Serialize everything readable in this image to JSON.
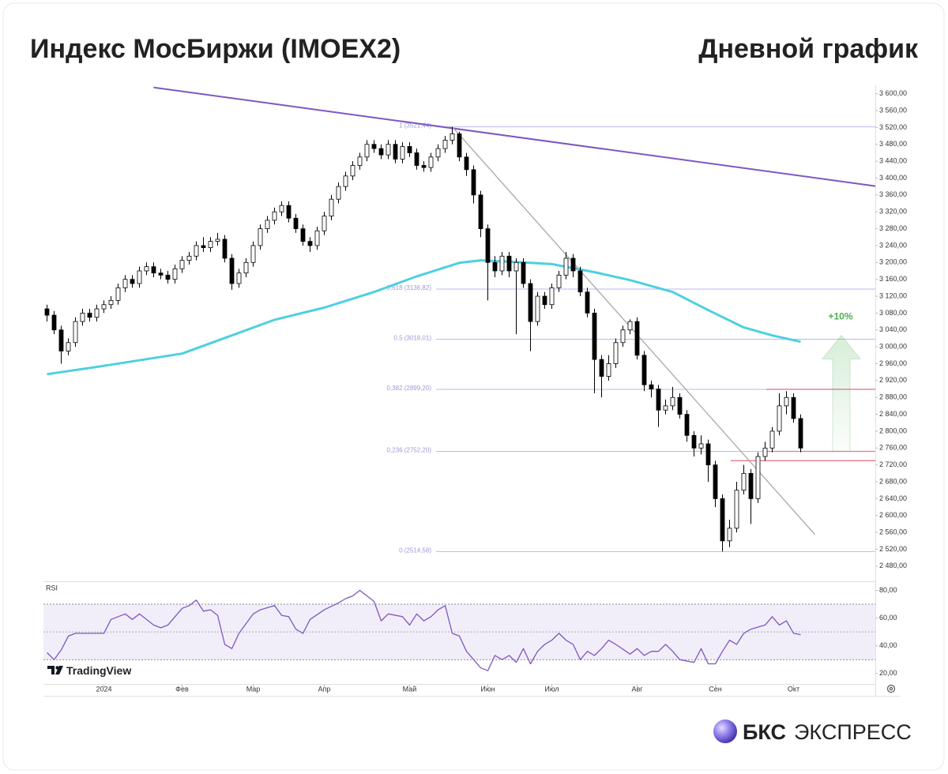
{
  "chart_data": {
    "type": "candlestick",
    "title": "Индекс МосБиржи (IMOEX2)",
    "subtitle": "Дневной график",
    "xlim": [
      -0.5,
      116.5
    ],
    "xticks": [
      {
        "value": 8,
        "label": "2024"
      },
      {
        "value": 19,
        "label": "Фев"
      },
      {
        "value": 29,
        "label": "Мар"
      },
      {
        "value": 39,
        "label": "Апр"
      },
      {
        "value": 51,
        "label": "Май"
      },
      {
        "value": 62,
        "label": "Июн"
      },
      {
        "value": 71,
        "label": "Июл"
      },
      {
        "value": 83,
        "label": "Авг"
      },
      {
        "value": 94,
        "label": "Сен"
      },
      {
        "value": 105,
        "label": "Окт"
      }
    ],
    "ylim": [
      2446,
      3620
    ],
    "yticks": [
      {
        "value": 2480,
        "label": "2 480,00"
      },
      {
        "value": 2520,
        "label": "2 520,00"
      },
      {
        "value": 2560,
        "label": "2 560,00"
      },
      {
        "value": 2600,
        "label": "2 600,00"
      },
      {
        "value": 2640,
        "label": "2 640,00"
      },
      {
        "value": 2680,
        "label": "2 680,00"
      },
      {
        "value": 2720,
        "label": "2 720,00"
      },
      {
        "value": 2760,
        "label": "2 760,00"
      },
      {
        "value": 2800,
        "label": "2 800,00"
      },
      {
        "value": 2840,
        "label": "2 840,00"
      },
      {
        "value": 2880,
        "label": "2 880,00"
      },
      {
        "value": 2920,
        "label": "2 920,00"
      },
      {
        "value": 2960,
        "label": "2 960,00"
      },
      {
        "value": 3000,
        "label": "3 000,00"
      },
      {
        "value": 3040,
        "label": "3 040,00"
      },
      {
        "value": 3080,
        "label": "3 080,00"
      },
      {
        "value": 3120,
        "label": "3 120,00"
      },
      {
        "value": 3160,
        "label": "3 160,00"
      },
      {
        "value": 3200,
        "label": "3 200,00"
      },
      {
        "value": 3240,
        "label": "3 240,00"
      },
      {
        "value": 3280,
        "label": "3 280,00"
      },
      {
        "value": 3320,
        "label": "3 320,00"
      },
      {
        "value": 3360,
        "label": "3 360,00"
      },
      {
        "value": 3400,
        "label": "3 400,00"
      },
      {
        "value": 3440,
        "label": "3 440,00"
      },
      {
        "value": 3480,
        "label": "3 480,00"
      },
      {
        "value": 3520,
        "label": "3 520,00"
      },
      {
        "value": 3560,
        "label": "3 560,00"
      },
      {
        "value": 3600,
        "label": "3 600,00"
      }
    ],
    "up_color": "#ffffff",
    "down_color": "#000000",
    "x": [
      0,
      1,
      2,
      3,
      4,
      5,
      6,
      7,
      8,
      9,
      10,
      11,
      12,
      13,
      14,
      15,
      16,
      17,
      18,
      19,
      20,
      21,
      22,
      23,
      24,
      25,
      26,
      27,
      28,
      29,
      30,
      31,
      32,
      33,
      34,
      35,
      36,
      37,
      38,
      39,
      40,
      41,
      42,
      43,
      44,
      45,
      46,
      47,
      48,
      49,
      50,
      51,
      52,
      53,
      54,
      55,
      56,
      57,
      58,
      59,
      60,
      61,
      62,
      63,
      64,
      65,
      66,
      67,
      68,
      69,
      70,
      71,
      72,
      73,
      74,
      75,
      76,
      77,
      78,
      79,
      80,
      81,
      82,
      83,
      84,
      85,
      86,
      87,
      88,
      89,
      90,
      91,
      92,
      93,
      94,
      95,
      96,
      97,
      98,
      99,
      100,
      101,
      102,
      103,
      104,
      105,
      106
    ],
    "open": [
      3090,
      3075,
      3040,
      2990,
      3010,
      3060,
      3080,
      3070,
      3090,
      3100,
      3110,
      3140,
      3160,
      3150,
      3180,
      3190,
      3175,
      3170,
      3160,
      3185,
      3205,
      3215,
      3240,
      3235,
      3250,
      3255,
      3210,
      3150,
      3175,
      3200,
      3240,
      3280,
      3300,
      3320,
      3335,
      3305,
      3280,
      3250,
      3240,
      3275,
      3310,
      3350,
      3380,
      3405,
      3430,
      3450,
      3480,
      3470,
      3455,
      3480,
      3445,
      3475,
      3460,
      3430,
      3425,
      3450,
      3470,
      3490,
      3505,
      3450,
      3420,
      3360,
      3280,
      3200,
      3180,
      3215,
      3180,
      3200,
      3150,
      3060,
      3120,
      3100,
      3140,
      3170,
      3210,
      3180,
      3130,
      3080,
      2970,
      2930,
      2960,
      3010,
      3040,
      3060,
      2980,
      2910,
      2900,
      2850,
      2860,
      2880,
      2840,
      2790,
      2760,
      2770,
      2720,
      2640,
      2540,
      2570,
      2660,
      2700,
      2640,
      2740,
      2760,
      2800,
      2860,
      2880,
      2830
    ],
    "high": [
      3100,
      3085,
      3050,
      3020,
      3070,
      3090,
      3090,
      3100,
      3110,
      3120,
      3150,
      3170,
      3170,
      3190,
      3200,
      3200,
      3185,
      3180,
      3195,
      3215,
      3225,
      3250,
      3260,
      3260,
      3270,
      3265,
      3220,
      3185,
      3210,
      3250,
      3290,
      3310,
      3330,
      3345,
      3345,
      3315,
      3290,
      3260,
      3285,
      3320,
      3360,
      3390,
      3415,
      3440,
      3460,
      3490,
      3490,
      3480,
      3490,
      3490,
      3485,
      3485,
      3470,
      3440,
      3460,
      3480,
      3500,
      3521.44,
      3510,
      3460,
      3430,
      3370,
      3290,
      3215,
      3225,
      3225,
      3210,
      3210,
      3160,
      3130,
      3130,
      3150,
      3180,
      3225,
      3220,
      3190,
      3140,
      3090,
      2980,
      2980,
      3020,
      3050,
      3065,
      3070,
      2990,
      2920,
      2910,
      2875,
      2905,
      2890,
      2850,
      2800,
      2790,
      2780,
      2730,
      2650,
      2590,
      2680,
      2720,
      2710,
      2750,
      2775,
      2810,
      2890,
      2895,
      2890,
      2840
    ],
    "low": [
      3060,
      3030,
      2960,
      2980,
      3000,
      3050,
      3060,
      3060,
      3080,
      3090,
      3100,
      3130,
      3140,
      3140,
      3170,
      3165,
      3160,
      3150,
      3150,
      3175,
      3195,
      3205,
      3225,
      3225,
      3240,
      3200,
      3135,
      3140,
      3165,
      3190,
      3230,
      3270,
      3290,
      3310,
      3295,
      3270,
      3240,
      3225,
      3230,
      3265,
      3300,
      3340,
      3370,
      3395,
      3420,
      3440,
      3460,
      3445,
      3445,
      3435,
      3435,
      3450,
      3420,
      3415,
      3415,
      3440,
      3460,
      3480,
      3440,
      3405,
      3340,
      3260,
      3110,
      3165,
      3170,
      3165,
      3030,
      3140,
      2990,
      3050,
      3090,
      3090,
      3130,
      3160,
      3165,
      3120,
      3070,
      2890,
      2880,
      2920,
      2950,
      3000,
      3030,
      2970,
      2895,
      2880,
      2810,
      2840,
      2850,
      2830,
      2775,
      2740,
      2745,
      2680,
      2620,
      2514.58,
      2525,
      2560,
      2650,
      2580,
      2630,
      2730,
      2750,
      2790,
      2840,
      2820,
      2750
    ],
    "close": [
      3075,
      3040,
      2990,
      3010,
      3060,
      3080,
      3070,
      3090,
      3100,
      3110,
      3140,
      3160,
      3150,
      3180,
      3190,
      3175,
      3170,
      3160,
      3185,
      3205,
      3215,
      3240,
      3235,
      3250,
      3255,
      3210,
      3150,
      3175,
      3200,
      3240,
      3280,
      3300,
      3320,
      3335,
      3305,
      3280,
      3250,
      3240,
      3275,
      3310,
      3350,
      3380,
      3405,
      3430,
      3450,
      3480,
      3470,
      3455,
      3480,
      3445,
      3475,
      3460,
      3430,
      3425,
      3450,
      3470,
      3490,
      3505,
      3450,
      3420,
      3360,
      3280,
      3200,
      3180,
      3215,
      3180,
      3200,
      3150,
      3060,
      3120,
      3100,
      3140,
      3170,
      3210,
      3180,
      3130,
      3080,
      2970,
      2930,
      2960,
      3010,
      3040,
      3060,
      2980,
      2910,
      2900,
      2850,
      2860,
      2880,
      2840,
      2790,
      2760,
      2770,
      2720,
      2640,
      2540,
      2570,
      2660,
      2700,
      2640,
      2740,
      2760,
      2800,
      2860,
      2880,
      2830,
      2760
    ],
    "ma": {
      "color": "#4dd0e1",
      "x": [
        0,
        8,
        19,
        26,
        32,
        39,
        46,
        52,
        58,
        61,
        66,
        71,
        77,
        82,
        88,
        93,
        98,
        102,
        106
      ],
      "values": [
        2935,
        2955,
        2984,
        3027,
        3064,
        3093,
        3130,
        3167,
        3199,
        3205,
        3201,
        3196,
        3177,
        3158,
        3130,
        3087,
        3046,
        3027,
        3012
      ]
    },
    "trendlines": [
      {
        "color": "#7e57c2",
        "x": [
          15,
          116.5
        ],
        "values": [
          3615,
          3381
        ]
      },
      {
        "color": "#a8a8a8",
        "x": [
          57,
          108
        ],
        "values": [
          3521.44,
          2555
        ]
      }
    ],
    "fib_levels": [
      {
        "value": 3521.44,
        "label": "1 (3521,44)"
      },
      {
        "value": 3136.82,
        "label": "0,618 (3136,82)"
      },
      {
        "value": 3018.01,
        "label": "0,5 (3018,01)"
      },
      {
        "value": 2899.2,
        "label": "0,382 (2899,20)"
      },
      {
        "value": 2752.2,
        "label": "0,236 (2752,20)"
      },
      {
        "value": 2514.58,
        "label": "0 (2514,58)"
      }
    ],
    "fib_color": "#b9b9f0",
    "levels": [
      {
        "value": 2899.2,
        "color": "#e8788a"
      },
      {
        "value": 2752.2,
        "color": "#e8788a"
      },
      {
        "value": 2730,
        "color": "#e8788a"
      }
    ],
    "target": {
      "label": "+10%",
      "from": 2752.2,
      "to": 3027.4,
      "color": "#4caf50"
    },
    "rsi": {
      "label": "RSI",
      "color": "#7e57c2",
      "fill": "#7e57c2",
      "ylim": [
        13,
        86
      ],
      "yticks": [
        {
          "value": 20,
          "label": "20,00"
        },
        {
          "value": 40,
          "label": "40,00"
        },
        {
          "value": 60,
          "label": "60,00"
        },
        {
          "value": 80,
          "label": "80,00"
        }
      ],
      "bands": [
        30,
        70
      ],
      "mid": 50,
      "x": [
        0,
        1,
        2,
        3,
        4,
        6,
        8,
        9,
        11,
        12,
        13,
        15,
        16,
        17,
        19,
        20,
        21,
        22,
        23,
        24,
        25,
        26,
        27,
        29,
        30,
        32,
        33,
        34,
        35,
        36,
        37,
        39,
        41,
        42,
        43,
        44,
        45,
        46,
        47,
        48,
        50,
        51,
        52,
        53,
        54,
        55,
        56,
        57,
        58,
        59,
        60,
        61,
        62,
        63,
        64,
        65,
        66,
        67,
        68,
        69,
        70,
        71,
        72,
        73,
        74,
        75,
        76,
        77,
        78,
        79,
        80,
        82,
        83,
        84,
        85,
        86,
        87,
        88,
        89,
        91,
        92,
        93,
        94,
        95,
        96,
        97,
        98,
        99,
        101,
        102,
        103,
        104,
        105,
        106
      ],
      "values": [
        35,
        30,
        37,
        47,
        49,
        49,
        49,
        59,
        63,
        59,
        63,
        55,
        53,
        55,
        67,
        69,
        73,
        65,
        66,
        62,
        41,
        38,
        49,
        63,
        66,
        69,
        62,
        61,
        52,
        49,
        59,
        66,
        71,
        74,
        76,
        80,
        76,
        72,
        58,
        63,
        61,
        55,
        63,
        58,
        61,
        66,
        69,
        49,
        47,
        36,
        30,
        24,
        22,
        33,
        30,
        33,
        28,
        38,
        27,
        36,
        41,
        44,
        49,
        44,
        41,
        30,
        36,
        33,
        38,
        44,
        41,
        34,
        38,
        33,
        36,
        36,
        41,
        36,
        30,
        28,
        38,
        27,
        27,
        36,
        44,
        41,
        49,
        52,
        55,
        61,
        55,
        58,
        49,
        48
      ]
    }
  },
  "branding": {
    "tradingview": "TradingView",
    "logo_name": "БКС",
    "logo_product": "ЭКСПРЕСС"
  }
}
